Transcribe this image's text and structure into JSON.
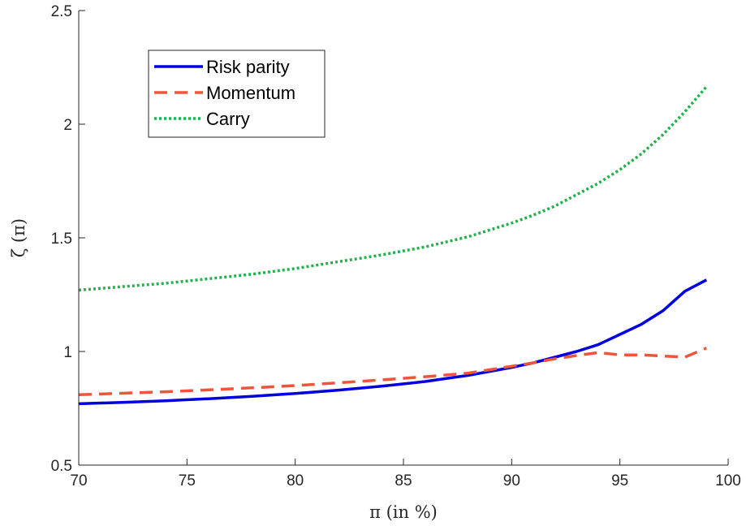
{
  "chart_data": {
    "type": "line",
    "title": "",
    "xlabel": "π (in %)",
    "ylabel": "ζ (π)",
    "xlim": [
      70,
      100
    ],
    "ylim": [
      0.5,
      2.5
    ],
    "xticks": [
      70,
      75,
      80,
      85,
      90,
      95,
      100
    ],
    "yticks": [
      0.5,
      1,
      1.5,
      2,
      2.5
    ],
    "xtick_labels": [
      "70",
      "75",
      "80",
      "85",
      "90",
      "95",
      "100"
    ],
    "ytick_labels": [
      "0.5",
      "1",
      "1.5",
      "2",
      "2.5"
    ],
    "grid": false,
    "legend_position": "top-left",
    "x": [
      70,
      72,
      74,
      76,
      78,
      80,
      82,
      84,
      86,
      88,
      90,
      91,
      92,
      93,
      94,
      95,
      96,
      97,
      98,
      99
    ],
    "series": [
      {
        "name": "Risk parity",
        "color": "#0000e0",
        "style": "solid",
        "values": [
          0.77,
          0.776,
          0.783,
          0.792,
          0.803,
          0.815,
          0.83,
          0.847,
          0.868,
          0.895,
          0.93,
          0.95,
          0.975,
          1.0,
          1.03,
          1.075,
          1.12,
          1.18,
          1.265,
          1.315
        ]
      },
      {
        "name": "Momentum",
        "color": "#f0553a",
        "style": "dashed",
        "values": [
          0.81,
          0.816,
          0.823,
          0.831,
          0.84,
          0.85,
          0.862,
          0.875,
          0.889,
          0.905,
          0.935,
          0.95,
          0.968,
          0.982,
          0.995,
          0.985,
          0.985,
          0.98,
          0.975,
          1.015
        ]
      },
      {
        "name": "Carry",
        "color": "#22b14c",
        "style": "dotted",
        "values": [
          1.27,
          1.285,
          1.3,
          1.32,
          1.34,
          1.365,
          1.395,
          1.425,
          1.46,
          1.505,
          1.565,
          1.6,
          1.64,
          1.69,
          1.74,
          1.8,
          1.87,
          1.955,
          2.055,
          2.165
        ]
      }
    ]
  }
}
